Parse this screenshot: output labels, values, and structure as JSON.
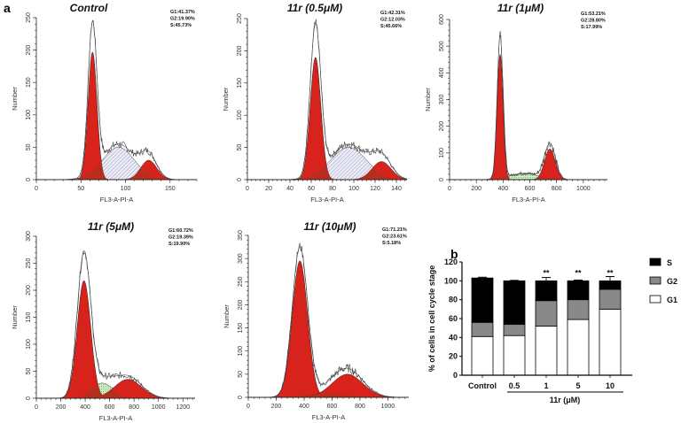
{
  "panel_labels": {
    "a": "a",
    "b": "b"
  },
  "colors": {
    "phase_peak": "#d8231c",
    "s_phase_hatch": "#b8b8d8",
    "s_phase_green": "#9ad68a",
    "bar_S": "#000000",
    "bar_G2": "#888888",
    "bar_G1": "#ffffff"
  },
  "chart_data": [
    {
      "type": "area",
      "title": "Control",
      "xlabel": "FL3-A-PI-A",
      "ylabel": "Number",
      "xlim": [
        0,
        180
      ],
      "ylim": [
        0,
        250
      ],
      "xticks": [
        0,
        50,
        100,
        150
      ],
      "yticks": [
        0,
        50,
        100,
        150,
        200,
        250
      ],
      "stats": [
        "G1:41.37%",
        "G2:19.90%",
        "S:45.73%"
      ],
      "fit": {
        "G1": {
          "mean": 63,
          "height": 197,
          "sd": 5
        },
        "G2": {
          "mean": 126,
          "height": 30,
          "sd": 9
        },
        "S": {
          "mean": 92,
          "height": 50,
          "sd": 18,
          "style": "hatch"
        }
      },
      "raw_peak": 230
    },
    {
      "type": "area",
      "title": "11r (0.5μM)",
      "xlabel": "FL3-A-PI-A",
      "ylabel": "Number",
      "xlim": [
        0,
        150
      ],
      "ylim": [
        0,
        250
      ],
      "xticks": [
        0,
        20,
        40,
        60,
        80,
        100,
        120,
        140
      ],
      "yticks": [
        0,
        50,
        100,
        150,
        200,
        250
      ],
      "stats": [
        "G1:42.31%",
        "G2:12.03%",
        "S:45.66%"
      ],
      "fit": {
        "G1": {
          "mean": 64,
          "height": 190,
          "sd": 5
        },
        "G2": {
          "mean": 126,
          "height": 28,
          "sd": 9
        },
        "S": {
          "mean": 95,
          "height": 50,
          "sd": 17,
          "style": "hatch"
        }
      },
      "raw_peak": 232
    },
    {
      "type": "area",
      "title": "11r (1μM)",
      "xlabel": "FL3-A-PI-A",
      "ylabel": "Number",
      "xlim": [
        0,
        1180
      ],
      "ylim": [
        0,
        600
      ],
      "xticks": [
        0,
        200,
        400,
        600,
        800,
        1000
      ],
      "yticks": [
        0,
        100,
        200,
        300,
        400,
        500,
        600
      ],
      "stats": [
        "G1:53.21%",
        "G2:28.80%",
        "S:17.99%"
      ],
      "fit": {
        "G1": {
          "mean": 378,
          "height": 470,
          "sd": 22
        },
        "G2": {
          "mean": 750,
          "height": 115,
          "sd": 40
        },
        "S": {
          "mean": 560,
          "height": 22,
          "sd": 110,
          "style": "green"
        }
      },
      "raw_peak": 535
    },
    {
      "type": "area",
      "title": "11r (5μM)",
      "xlabel": "FL3-A-PI-A",
      "ylabel": "Number",
      "xlim": [
        0,
        1300
      ],
      "ylim": [
        0,
        300
      ],
      "xticks": [
        0,
        200,
        400,
        600,
        800,
        1000,
        1200
      ],
      "yticks": [
        0,
        50,
        100,
        150,
        200,
        250,
        300
      ],
      "stats": [
        "G1:60.72%",
        "G2:19.39%",
        "S:19.90%"
      ],
      "fit": {
        "G1": {
          "mean": 390,
          "height": 218,
          "sd": 55
        },
        "G2": {
          "mean": 750,
          "height": 35,
          "sd": 110
        },
        "S": {
          "mean": 540,
          "height": 28,
          "sd": 90,
          "style": "green"
        }
      },
      "raw_peak": 265
    },
    {
      "type": "area",
      "title": "11r (10μM)",
      "xlabel": "FL3-A-PI-A",
      "ylabel": "Number",
      "xlim": [
        0,
        1150
      ],
      "ylim": [
        0,
        350
      ],
      "xticks": [
        0,
        200,
        400,
        600,
        800,
        1000
      ],
      "yticks": [
        0,
        50,
        100,
        150,
        200,
        250,
        300,
        350
      ],
      "stats": [
        "G1:71.21%",
        "G2:23.61%",
        "S:5.18%"
      ],
      "fit": {
        "G1": {
          "mean": 370,
          "height": 295,
          "sd": 55
        },
        "G2": {
          "mean": 710,
          "height": 50,
          "sd": 110
        },
        "S": {
          "mean": 560,
          "height": 8,
          "sd": 150,
          "style": "orange"
        }
      },
      "raw_peak": 322
    },
    {
      "type": "bar",
      "stacked": true,
      "ylabel": "% of cells in cell cycle stage",
      "xlabel": "11r (μM)",
      "ylim": [
        0,
        120
      ],
      "yticks": [
        0,
        20,
        40,
        60,
        80,
        100,
        120
      ],
      "categories": [
        "Control",
        "0.5",
        "1",
        "5",
        "10"
      ],
      "series": [
        {
          "name": "G1",
          "values": [
            41,
            42,
            52,
            59,
            70
          ],
          "errors": [
            1,
            0.5,
            1.5,
            1.5,
            2
          ]
        },
        {
          "name": "G2",
          "values": [
            15,
            12,
            27,
            21,
            21
          ],
          "errors": [
            0,
            0,
            0,
            0,
            0
          ]
        },
        {
          "name": "S",
          "values": [
            47,
            46,
            21,
            20,
            9
          ],
          "errors": [
            0.8,
            0.5,
            3.5,
            0.8,
            4.5
          ]
        }
      ],
      "legend": [
        "S",
        "G2",
        "G1"
      ],
      "legend_position": "right",
      "annotations": [
        "",
        "",
        "**",
        "**",
        "**"
      ]
    }
  ]
}
